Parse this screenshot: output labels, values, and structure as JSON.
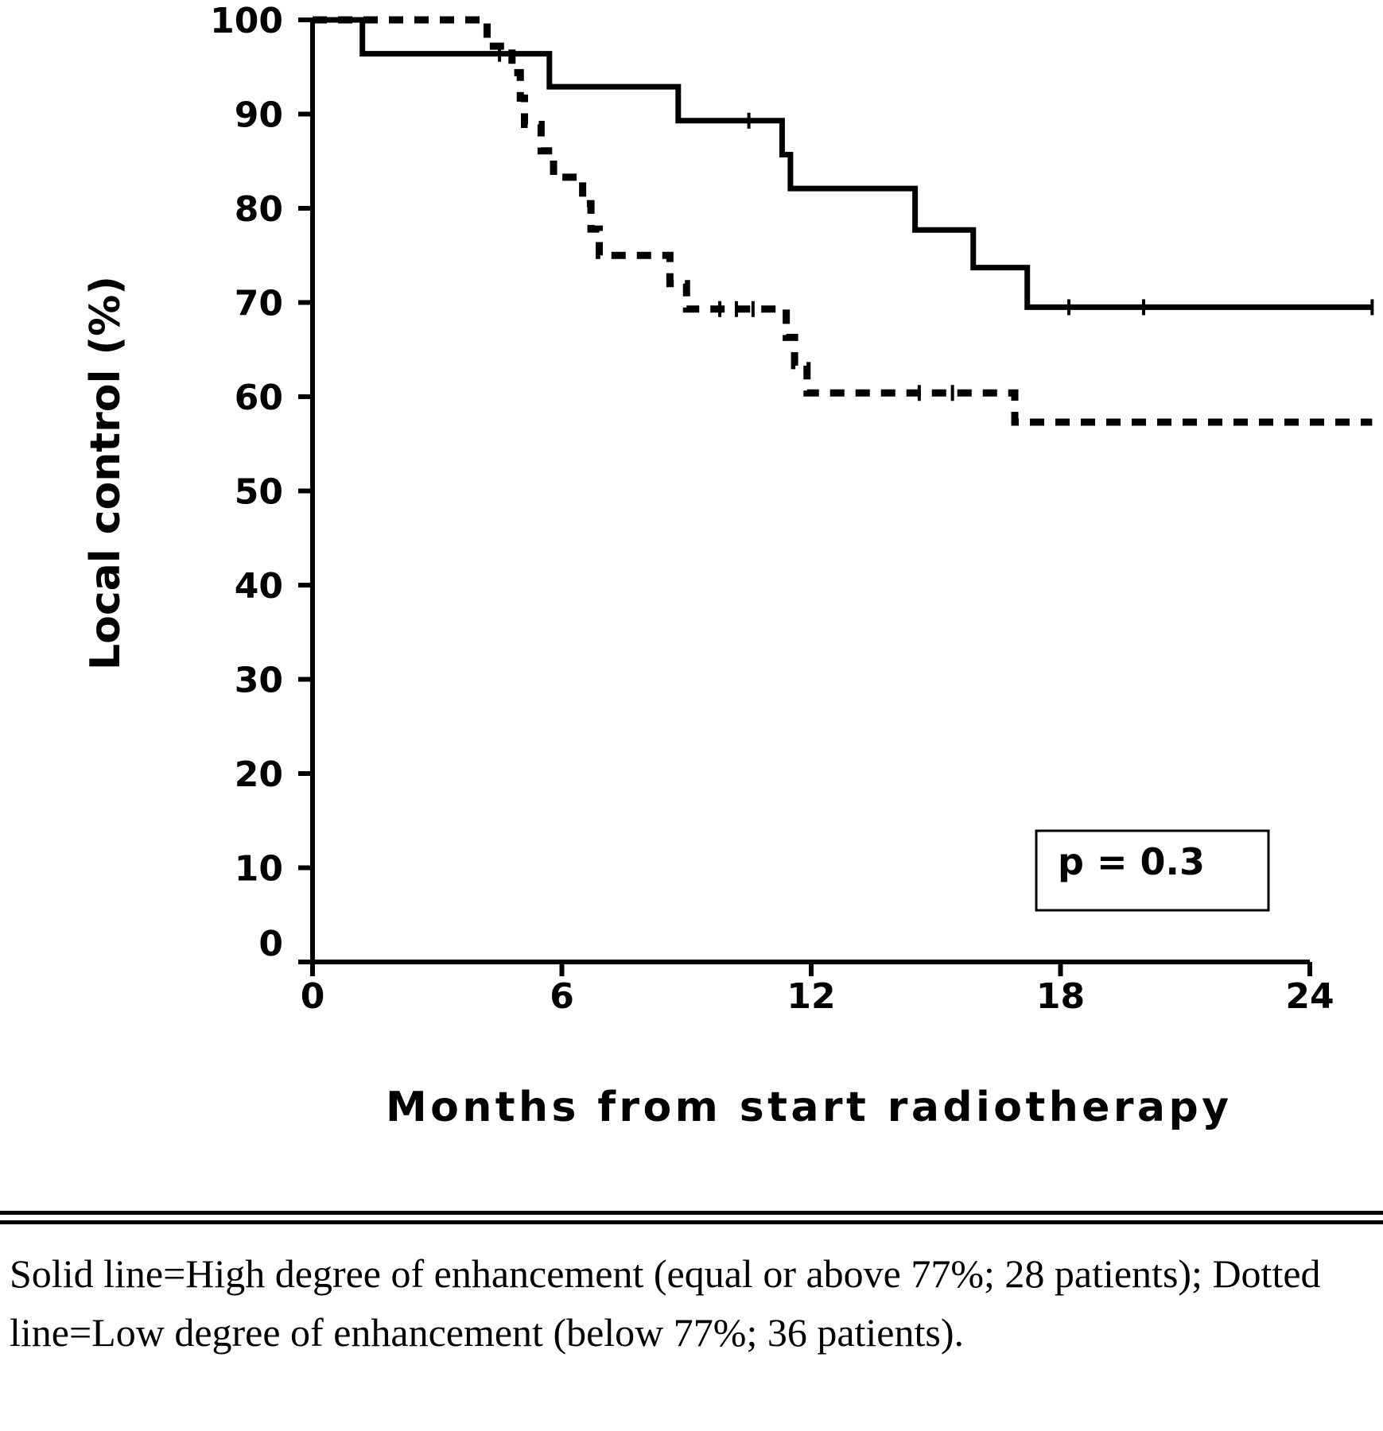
{
  "chart_data": {
    "type": "line",
    "title": "",
    "xlabel": "Months from start radiotherapy",
    "ylabel": "Local control (%)",
    "xlim": [
      0,
      24
    ],
    "ylim": [
      0,
      100
    ],
    "x_ticks": [
      "0",
      "6",
      "12",
      "18",
      "24"
    ],
    "y_ticks": [
      "0",
      "10",
      "20",
      "30",
      "40",
      "50",
      "60",
      "70",
      "80",
      "90",
      "100"
    ],
    "grid": false,
    "annotation": "p = 0.3",
    "series": [
      {
        "style": "solid",
        "color": "#000000",
        "steps": [
          [
            0,
            100
          ],
          [
            1.2,
            96.4
          ],
          [
            5.7,
            92.9
          ],
          [
            8.8,
            89.3
          ],
          [
            11.3,
            85.7
          ],
          [
            11.5,
            82.1
          ],
          [
            14.5,
            77.7
          ],
          [
            15.9,
            73.7
          ],
          [
            17.2,
            69.5
          ],
          [
            25.5,
            69.5
          ]
        ],
        "censored": [
          [
            4.5,
            96.4
          ],
          [
            10.5,
            89.3
          ],
          [
            18.2,
            69.5
          ],
          [
            20,
            69.5
          ],
          [
            25.5,
            69.5
          ]
        ]
      },
      {
        "style": "dotted",
        "color": "#000000",
        "steps": [
          [
            0,
            100
          ],
          [
            4.2,
            97.2
          ],
          [
            4.8,
            94.4
          ],
          [
            5.0,
            91.7
          ],
          [
            5.1,
            88.9
          ],
          [
            5.5,
            86.1
          ],
          [
            5.8,
            83.3
          ],
          [
            6.5,
            80.5
          ],
          [
            6.7,
            77.8
          ],
          [
            6.9,
            75.0
          ],
          [
            8.6,
            72.0
          ],
          [
            9.0,
            69.3
          ],
          [
            11.4,
            66.3
          ],
          [
            11.6,
            63.3
          ],
          [
            11.9,
            60.4
          ],
          [
            16.9,
            57.3
          ],
          [
            25.5,
            57.3
          ]
        ],
        "censored": [
          [
            9.8,
            69.3
          ],
          [
            10.2,
            69.3
          ],
          [
            10.6,
            69.3
          ],
          [
            14.6,
            60.4
          ],
          [
            15.4,
            60.4
          ]
        ]
      }
    ]
  },
  "caption": "Solid line=High degree of enhancement (equal or above 77%; 28 patients); Dotted line=Low degree of enhancement (below 77%; 36 patients)."
}
